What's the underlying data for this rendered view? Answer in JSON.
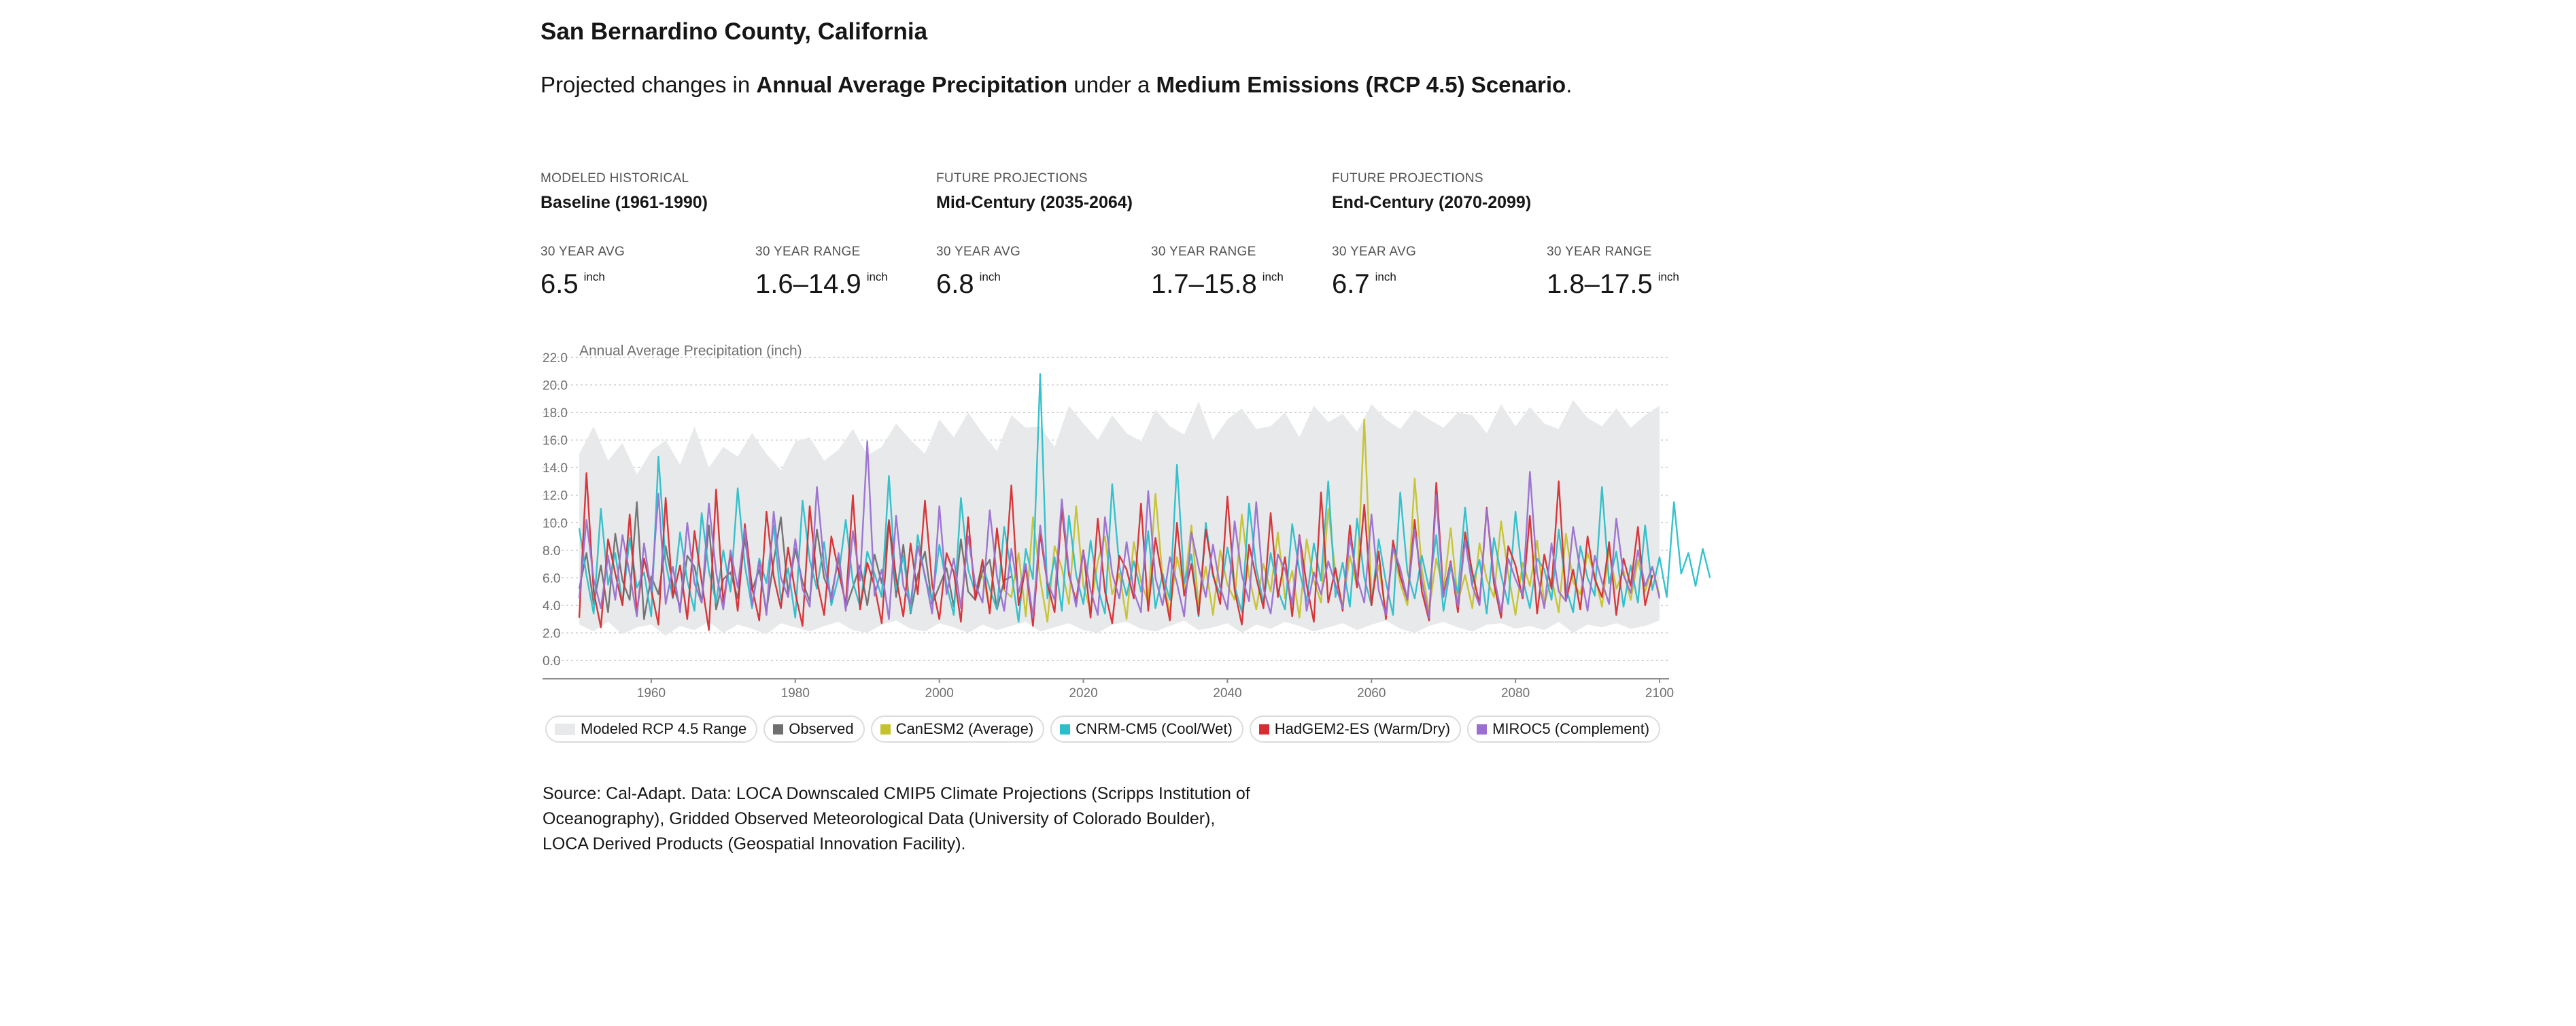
{
  "header": {
    "title": "San Bernardino County, California",
    "subtitle_prefix": "Projected changes in ",
    "subtitle_var": "Annual Average Precipitation",
    "subtitle_mid": " under a ",
    "subtitle_scenario": "Medium Emissions (RCP 4.5) Scenario",
    "subtitle_suffix": "."
  },
  "periods": [
    {
      "kicker": "MODELED HISTORICAL",
      "name": "Baseline (1961-1990)",
      "avg_label": "30 YEAR AVG",
      "avg": "6.5",
      "avg_unit": "inch",
      "range_label": "30 YEAR RANGE",
      "range": "1.6–14.9",
      "range_unit": "inch"
    },
    {
      "kicker": "FUTURE PROJECTIONS",
      "name": "Mid-Century (2035-2064)",
      "avg_label": "30 YEAR AVG",
      "avg": "6.8",
      "avg_unit": "inch",
      "range_label": "30 YEAR RANGE",
      "range": "1.7–15.8",
      "range_unit": "inch"
    },
    {
      "kicker": "FUTURE PROJECTIONS",
      "name": "End-Century (2070-2099)",
      "avg_label": "30 YEAR AVG",
      "avg": "6.7",
      "avg_unit": "inch",
      "range_label": "30 YEAR RANGE",
      "range": "1.8–17.5",
      "range_unit": "inch"
    }
  ],
  "legend": [
    {
      "label": "Modeled RCP 4.5 Range",
      "color": "#e8e9ea",
      "kind": "range"
    },
    {
      "label": "Observed",
      "color": "#6f6f6f",
      "kind": "line"
    },
    {
      "label": "CanESM2 (Average)",
      "color": "#c5c22c",
      "kind": "line"
    },
    {
      "label": "CNRM-CM5 (Cool/Wet)",
      "color": "#2bbfca",
      "kind": "line"
    },
    {
      "label": "HadGEM2-ES (Warm/Dry)",
      "color": "#d62d32",
      "kind": "line"
    },
    {
      "label": "MIROC5 (Complement)",
      "color": "#9a6fd1",
      "kind": "line"
    }
  ],
  "source": "Source: Cal-Adapt. Data: LOCA Downscaled CMIP5 Climate Projections (Scripps Institution of Oceanography), Gridded Observed Meteorological Data (University of Colorado Boulder), LOCA Derived Products (Geospatial Innovation Facility).",
  "chart_data": {
    "type": "line",
    "title": "",
    "ylabel": "Annual Average Precipitation (inch)",
    "xlabel": "",
    "xlim": [
      1950,
      2100
    ],
    "ylim": [
      0,
      22
    ],
    "yticks": [
      "0.0",
      "2.0",
      "4.0",
      "6.0",
      "8.0",
      "10.0",
      "12.0",
      "14.0",
      "16.0",
      "18.0",
      "20.0",
      "22.0"
    ],
    "xticks": [
      "1960",
      "1980",
      "2000",
      "2020",
      "2040",
      "2060",
      "2080",
      "2100"
    ],
    "grid": true,
    "legend_position": "bottom",
    "series": [
      {
        "name": "Modeled RCP 4.5 Range",
        "type": "area",
        "color": "#e8e9ea",
        "x_start": 1950,
        "x_step": 2,
        "upper": [
          15.0,
          17.0,
          14.5,
          15.8,
          13.5,
          15.2,
          16.0,
          14.2,
          17.0,
          14.0,
          15.5,
          14.8,
          16.5,
          15.0,
          13.8,
          15.9,
          16.2,
          14.5,
          15.3,
          16.8,
          14.9,
          15.5,
          17.2,
          16.0,
          15.0,
          17.5,
          16.2,
          18.0,
          16.5,
          15.2,
          17.8,
          16.9,
          17.0,
          15.5,
          18.5,
          17.2,
          16.0,
          17.8,
          16.5,
          15.9,
          18.2,
          17.0,
          16.4,
          18.8,
          16.0,
          17.5,
          18.3,
          16.8,
          17.0,
          18.0,
          16.2,
          18.5,
          17.3,
          17.9,
          16.6,
          18.6,
          17.5,
          16.8,
          18.2,
          17.5,
          16.9,
          18.0,
          17.8,
          16.5,
          18.6,
          17.0,
          18.4,
          17.2,
          16.8,
          18.9,
          17.6,
          17.0,
          18.3,
          16.9,
          17.8,
          18.5
        ],
        "lower": [
          2.6,
          2.1,
          2.8,
          1.9,
          2.4,
          2.6,
          1.8,
          2.5,
          2.2,
          2.8,
          2.0,
          2.6,
          2.3,
          1.9,
          2.7,
          2.4,
          2.1,
          2.5,
          2.8,
          2.2,
          2.0,
          2.6,
          2.9,
          2.3,
          2.1,
          2.7,
          2.4,
          2.0,
          2.6,
          2.2,
          2.5,
          2.8,
          2.1,
          2.4,
          2.7,
          2.2,
          2.0,
          2.6,
          2.8,
          2.3,
          2.1,
          2.5,
          2.9,
          2.2,
          2.4,
          2.7,
          2.0,
          2.6,
          2.3,
          2.8,
          2.5,
          2.1,
          2.4,
          2.7,
          2.2,
          2.6,
          2.9,
          2.3,
          2.0,
          2.5,
          2.8,
          2.4,
          2.1,
          2.6,
          2.7,
          2.3,
          2.5,
          2.2,
          2.8,
          2.0,
          2.6,
          2.4,
          2.7,
          2.3,
          2.5,
          2.9
        ]
      },
      {
        "name": "Observed",
        "color": "#6f6f6f",
        "x_start": 1950,
        "x_step": 1,
        "values": [
          5.2,
          7.8,
          4.1,
          6.9,
          3.5,
          9.2,
          5.8,
          4.4,
          11.5,
          3.0,
          6.1,
          4.8,
          8.3,
          5.5,
          3.9,
          7.6,
          6.8,
          4.2,
          9.8,
          3.7,
          5.9,
          6.4,
          4.5,
          8.9,
          5.1,
          6.6,
          3.6,
          7.2,
          10.4,
          4.9,
          8.1,
          5.7,
          4.3,
          9.5,
          6.0,
          4.7,
          7.4,
          3.8,
          5.3,
          6.9,
          4.0,
          7.7,
          5.6,
          10.2,
          4.6,
          8.4,
          3.4,
          6.2,
          7.9,
          4.1,
          5.4,
          6.7,
          3.9,
          8.8,
          5.0,
          4.4,
          6.5,
          7.3,
          3.7,
          5.8,
          6.1
        ]
      },
      {
        "name": "CanESM2 (Average)",
        "color": "#c5c22c",
        "x_start": 2006,
        "x_step": 1,
        "values": [
          6.2,
          3.8,
          9.5,
          5.1,
          4.6,
          7.8,
          3.2,
          10.4,
          5.9,
          2.8,
          8.3,
          6.7,
          4.1,
          11.2,
          5.4,
          3.6,
          7.2,
          9.0,
          4.8,
          6.3,
          3.0,
          8.6,
          5.7,
          4.2,
          12.1,
          6.0,
          3.5,
          7.5,
          5.2,
          9.8,
          4.0,
          6.8,
          3.3,
          8.0,
          5.5,
          4.4,
          10.6,
          6.1,
          3.7,
          7.0,
          5.0,
          9.3,
          4.5,
          6.5,
          3.1,
          8.8,
          5.8,
          4.2,
          11.0,
          6.4,
          3.9,
          7.6,
          5.3,
          17.5,
          4.7,
          6.9,
          3.4,
          8.2,
          5.6,
          4.0,
          13.2,
          6.6,
          3.6,
          7.4,
          5.1,
          9.6,
          4.3,
          6.2,
          3.8,
          8.5,
          5.9,
          4.6,
          10.1,
          6.3,
          3.3,
          7.1,
          5.4,
          8.7,
          4.1,
          6.0,
          3.5,
          9.2,
          5.7,
          4.8,
          7.8,
          6.2,
          3.9,
          8.0,
          5.2,
          6.5,
          4.4,
          7.3,
          5.0,
          6.8,
          4.7
        ]
      },
      {
        "name": "CNRM-CM5 (Cool/Wet)",
        "color": "#2bbfca",
        "x_start": 1950,
        "x_step": 1,
        "values": [
          9.6,
          6.2,
          3.4,
          11.0,
          5.5,
          7.8,
          4.1,
          8.9,
          5.3,
          6.4,
          3.2,
          14.8,
          7.1,
          4.5,
          9.3,
          5.8,
          3.6,
          10.7,
          6.5,
          4.2,
          8.0,
          5.0,
          12.5,
          6.9,
          3.8,
          7.4,
          5.6,
          9.8,
          4.4,
          6.7,
          3.1,
          11.6,
          7.3,
          5.2,
          8.6,
          4.0,
          6.1,
          10.2,
          5.7,
          3.9,
          7.9,
          6.3,
          4.6,
          13.4,
          5.1,
          7.6,
          3.5,
          9.1,
          6.0,
          4.3,
          8.4,
          5.5,
          3.3,
          11.8,
          6.6,
          4.9,
          7.0,
          5.2,
          3.7,
          9.7,
          6.4,
          2.8,
          8.1,
          5.9,
          20.8,
          4.5,
          7.5,
          3.6,
          10.5,
          6.2,
          4.1,
          8.7,
          5.3,
          3.4,
          12.8,
          6.8,
          4.7,
          7.2,
          5.0,
          9.4,
          3.8,
          6.3,
          4.4,
          14.2,
          5.6,
          7.7,
          3.2,
          10.0,
          6.1,
          4.8,
          8.2,
          5.4,
          3.5,
          11.4,
          6.7,
          4.2,
          7.8,
          5.1,
          3.7,
          9.9,
          6.5,
          4.3,
          8.5,
          5.8,
          13.0,
          4.6,
          7.1,
          3.9,
          10.3,
          6.0,
          4.0,
          8.8,
          5.7,
          3.3,
          12.2,
          6.4,
          4.5,
          7.6,
          5.2,
          9.1,
          3.6,
          6.8,
          4.9,
          11.1,
          5.5,
          7.3,
          3.4,
          8.9,
          6.2,
          4.1,
          10.8,
          5.9,
          3.8,
          7.4,
          6.6,
          4.4,
          9.5,
          5.3,
          3.5,
          8.3,
          6.0,
          4.7,
          12.6,
          5.6,
          7.9,
          3.9,
          6.9,
          4.2,
          9.8,
          5.1,
          7.5,
          4.6,
          11.5,
          6.3,
          7.8,
          5.4,
          8.1,
          6.0
        ]
      },
      {
        "name": "HadGEM2-ES (Warm/Dry)",
        "color": "#d62d32",
        "x_start": 1950,
        "x_step": 1,
        "values": [
          3.1,
          13.6,
          5.0,
          2.4,
          8.8,
          6.3,
          4.0,
          10.6,
          3.5,
          7.4,
          5.1,
          2.6,
          11.8,
          4.6,
          6.9,
          3.0,
          9.4,
          5.7,
          2.2,
          12.4,
          4.2,
          7.7,
          3.6,
          9.9,
          5.3,
          2.9,
          10.8,
          6.1,
          3.8,
          8.2,
          4.9,
          2.5,
          11.2,
          5.8,
          3.3,
          9.0,
          6.5,
          4.1,
          12.0,
          3.7,
          7.1,
          5.4,
          2.7,
          10.1,
          6.0,
          3.2,
          8.5,
          4.8,
          11.6,
          5.5,
          3.0,
          7.8,
          6.4,
          2.8,
          10.4,
          4.4,
          7.3,
          3.4,
          9.6,
          5.2,
          12.7,
          4.0,
          6.8,
          2.5,
          9.2,
          5.6,
          3.5,
          11.0,
          6.2,
          4.3,
          8.0,
          3.1,
          10.3,
          5.0,
          2.7,
          7.6,
          6.6,
          4.5,
          11.4,
          3.6,
          8.9,
          5.8,
          2.9,
          10.0,
          4.7,
          7.0,
          3.3,
          9.5,
          6.3,
          4.1,
          11.9,
          5.1,
          2.6,
          8.4,
          6.0,
          3.8,
          10.7,
          4.6,
          7.5,
          3.2,
          9.1,
          5.5,
          2.8,
          12.2,
          4.2,
          6.7,
          3.6,
          9.8,
          5.3,
          11.3,
          4.0,
          7.9,
          3.0,
          8.7,
          6.1,
          4.4,
          10.2,
          5.0,
          2.9,
          12.9,
          4.8,
          7.2,
          3.5,
          9.3,
          6.4,
          4.1,
          11.1,
          5.6,
          3.1,
          8.3,
          6.9,
          4.5,
          10.5,
          3.4,
          7.7,
          5.2,
          13.0,
          4.3,
          6.6,
          3.7,
          9.0,
          5.9,
          4.6,
          8.6,
          3.3,
          7.4,
          5.4,
          9.7,
          4.0,
          6.2
        ]
      },
      {
        "name": "MIROC5 (Complement)",
        "color": "#9a6fd1",
        "x_start": 1950,
        "x_step": 1,
        "values": [
          4.5,
          10.2,
          5.9,
          3.8,
          7.6,
          4.4,
          9.1,
          6.3,
          3.2,
          8.5,
          5.0,
          12.1,
          4.1,
          6.8,
          3.5,
          10.0,
          5.6,
          4.2,
          11.4,
          6.4,
          3.7,
          8.0,
          5.3,
          9.6,
          4.0,
          7.2,
          3.3,
          10.8,
          6.0,
          4.6,
          8.8,
          5.2,
          3.9,
          12.6,
          6.9,
          4.3,
          7.8,
          3.6,
          9.4,
          5.8,
          15.9,
          4.7,
          6.6,
          3.0,
          10.5,
          5.4,
          4.1,
          8.3,
          6.2,
          3.4,
          11.2,
          4.8,
          7.4,
          3.8,
          9.0,
          5.5,
          4.2,
          10.9,
          6.1,
          3.6,
          8.1,
          4.9,
          7.0,
          3.1,
          9.8,
          5.7,
          4.4,
          11.7,
          6.5,
          3.9,
          7.9,
          5.1,
          3.3,
          10.4,
          6.3,
          4.5,
          8.6,
          5.0,
          3.5,
          12.3,
          6.0,
          4.0,
          7.5,
          5.6,
          3.2,
          9.3,
          6.8,
          4.6,
          8.4,
          5.3,
          3.7,
          10.1,
          6.2,
          4.3,
          11.5,
          5.2,
          3.4,
          7.7,
          6.6,
          4.1,
          9.0,
          3.6,
          6.4,
          4.8,
          7.2,
          5.5,
          3.8,
          8.9,
          6.0,
          4.2,
          10.6,
          5.1,
          3.3,
          8.2,
          6.7,
          4.4,
          9.5,
          5.8,
          3.1,
          12.0,
          4.6,
          7.1,
          3.9,
          8.7,
          5.4,
          4.0,
          11.0,
          6.1,
          3.5,
          7.4,
          5.9,
          4.7,
          13.7,
          6.3,
          3.8,
          8.5,
          5.0,
          4.3,
          9.7,
          6.5,
          3.6,
          7.6,
          5.7,
          4.1,
          10.3,
          6.2,
          4.9,
          8.0,
          5.4,
          6.8,
          4.5
        ]
      }
    ]
  }
}
